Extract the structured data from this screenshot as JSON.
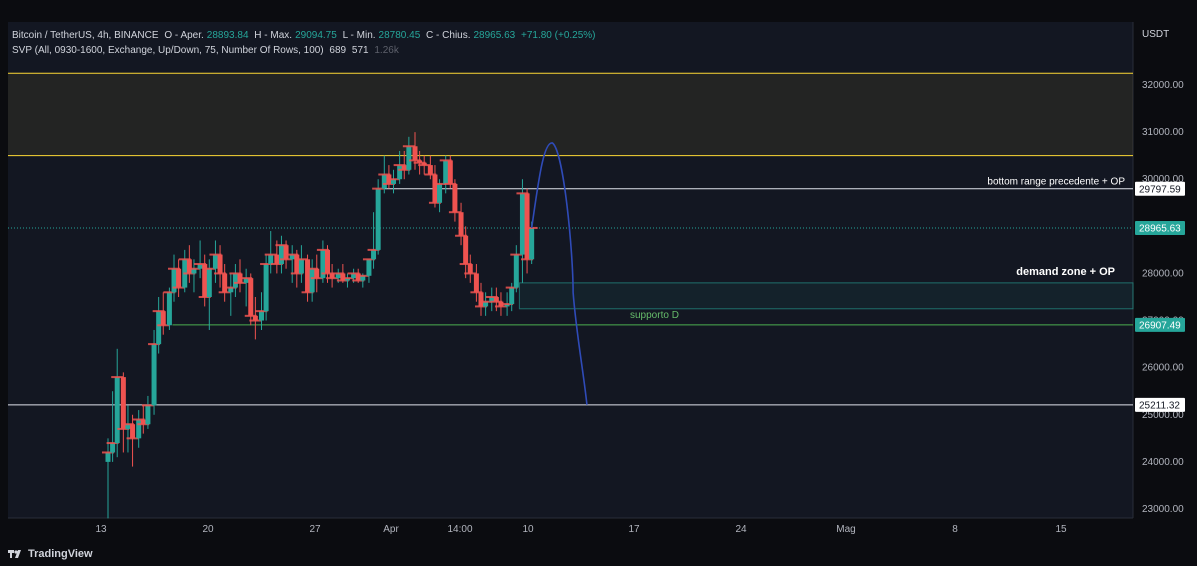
{
  "header": {
    "symbol": "Bitcoin / TetherUS, 4h, BINANCE",
    "o_label": "O - Aper.",
    "o_value": "28893.84",
    "h_label": "H - Max.",
    "h_value": "29094.75",
    "l_label": "L - Min.",
    "l_value": "28780.45",
    "c_label": "C - Chius.",
    "c_value": "28965.63",
    "change": "+71.80 (+0.25%)",
    "indicator": "SVP (All, 0930-1600, Exchange, Up/Down, 75, Number Of Rows, 100)",
    "ind_v1": "689",
    "ind_v2": "571",
    "ind_v3": "1.26k"
  },
  "brand": "TradingView",
  "colors": {
    "up": "#26a69a",
    "down": "#ef5350",
    "bg": "#0b0c10",
    "zone": "#fdd835",
    "path": "#2f4bb8"
  },
  "chart_data": {
    "type": "candlestick",
    "currency_label": "USDT",
    "y_ticks": [
      "32000.00",
      "31000.00",
      "30000.00",
      "29000.00",
      "28000.00",
      "27000.00",
      "26000.00",
      "25000.00",
      "24000.00",
      "23000.00"
    ],
    "x_ticks": [
      "13",
      "20",
      "27",
      "Apr",
      "14:00",
      "10",
      "17",
      "24",
      "Mag",
      "8",
      "15"
    ],
    "ylim": [
      22900,
      33000
    ],
    "price_labels": [
      {
        "value": 29797.59,
        "text": "29797.59",
        "style": "white"
      },
      {
        "value": 28965.63,
        "text": "28965.63",
        "style": "green"
      },
      {
        "value": 26907.49,
        "text": "26907.49",
        "style": "green"
      },
      {
        "value": 25211.32,
        "text": "25211.32",
        "style": "white"
      }
    ],
    "annotations": [
      {
        "text": "bottom range precedente + OP",
        "value": 29950
      },
      {
        "text": "demand zone + OP",
        "value": 28050
      },
      {
        "text": "supporto D",
        "value": 27120
      }
    ],
    "supply_zone": [
      30500,
      32250
    ],
    "demand_zone": [
      27250,
      27800
    ],
    "candles": [
      {
        "d": 0.0,
        "o": 24000,
        "h": 24500,
        "l": 22800,
        "c": 24200
      },
      {
        "d": 0.3,
        "o": 24200,
        "h": 25500,
        "l": 24000,
        "c": 24400
      },
      {
        "d": 0.6,
        "o": 24400,
        "h": 26400,
        "l": 24100,
        "c": 25800
      },
      {
        "d": 1.0,
        "o": 25800,
        "h": 25900,
        "l": 24200,
        "c": 24700
      },
      {
        "d": 1.3,
        "o": 24700,
        "h": 25200,
        "l": 24200,
        "c": 24800
      },
      {
        "d": 1.6,
        "o": 24800,
        "h": 25000,
        "l": 23900,
        "c": 24500
      },
      {
        "d": 2.0,
        "o": 24500,
        "h": 25100,
        "l": 24300,
        "c": 24900
      },
      {
        "d": 2.3,
        "o": 24900,
        "h": 25200,
        "l": 24600,
        "c": 24800
      },
      {
        "d": 2.6,
        "o": 24800,
        "h": 25400,
        "l": 24700,
        "c": 25200
      },
      {
        "d": 3.0,
        "o": 25200,
        "h": 26800,
        "l": 25000,
        "c": 26500
      },
      {
        "d": 3.3,
        "o": 26500,
        "h": 27500,
        "l": 26300,
        "c": 27200
      },
      {
        "d": 3.6,
        "o": 27200,
        "h": 27600,
        "l": 26700,
        "c": 26900
      },
      {
        "d": 4.0,
        "o": 26900,
        "h": 27700,
        "l": 26800,
        "c": 27600
      },
      {
        "d": 4.3,
        "o": 27600,
        "h": 28400,
        "l": 27400,
        "c": 28100
      },
      {
        "d": 4.6,
        "o": 28100,
        "h": 28300,
        "l": 27500,
        "c": 27700
      },
      {
        "d": 5.0,
        "o": 27700,
        "h": 28500,
        "l": 27600,
        "c": 28300
      },
      {
        "d": 5.3,
        "o": 28300,
        "h": 28600,
        "l": 27800,
        "c": 28000
      },
      {
        "d": 5.6,
        "o": 28000,
        "h": 28300,
        "l": 27600,
        "c": 28100
      },
      {
        "d": 6.0,
        "o": 28100,
        "h": 28700,
        "l": 27900,
        "c": 28200
      },
      {
        "d": 6.3,
        "o": 28200,
        "h": 28400,
        "l": 27300,
        "c": 27500
      },
      {
        "d": 6.6,
        "o": 27500,
        "h": 28300,
        "l": 26800,
        "c": 28100
      },
      {
        "d": 7.0,
        "o": 28100,
        "h": 28700,
        "l": 27800,
        "c": 28400
      },
      {
        "d": 7.3,
        "o": 28400,
        "h": 28600,
        "l": 27700,
        "c": 28000
      },
      {
        "d": 7.6,
        "o": 28000,
        "h": 28200,
        "l": 27400,
        "c": 27600
      },
      {
        "d": 8.0,
        "o": 27600,
        "h": 28000,
        "l": 27100,
        "c": 27700
      },
      {
        "d": 8.3,
        "o": 27700,
        "h": 28200,
        "l": 27500,
        "c": 28000
      },
      {
        "d": 8.6,
        "o": 28000,
        "h": 28300,
        "l": 27600,
        "c": 27800
      },
      {
        "d": 9.0,
        "o": 27800,
        "h": 28100,
        "l": 27300,
        "c": 27900
      },
      {
        "d": 9.3,
        "o": 27900,
        "h": 28000,
        "l": 26900,
        "c": 27100
      },
      {
        "d": 9.6,
        "o": 27100,
        "h": 27500,
        "l": 26600,
        "c": 27000
      },
      {
        "d": 10.0,
        "o": 27000,
        "h": 27600,
        "l": 26800,
        "c": 27200
      },
      {
        "d": 10.3,
        "o": 27200,
        "h": 28400,
        "l": 27000,
        "c": 28200
      },
      {
        "d": 10.6,
        "o": 28200,
        "h": 28900,
        "l": 28000,
        "c": 28400
      },
      {
        "d": 11.0,
        "o": 28400,
        "h": 28700,
        "l": 28000,
        "c": 28200
      },
      {
        "d": 11.3,
        "o": 28200,
        "h": 28800,
        "l": 28000,
        "c": 28600
      },
      {
        "d": 11.6,
        "o": 28600,
        "h": 28700,
        "l": 28100,
        "c": 28300
      },
      {
        "d": 12.0,
        "o": 28300,
        "h": 28600,
        "l": 27800,
        "c": 28400
      },
      {
        "d": 12.3,
        "o": 28400,
        "h": 28500,
        "l": 27700,
        "c": 28000
      },
      {
        "d": 12.6,
        "o": 28000,
        "h": 28600,
        "l": 27800,
        "c": 28300
      },
      {
        "d": 13.0,
        "o": 28300,
        "h": 28400,
        "l": 27400,
        "c": 27600
      },
      {
        "d": 13.3,
        "o": 27600,
        "h": 28300,
        "l": 27400,
        "c": 28100
      },
      {
        "d": 13.6,
        "o": 28100,
        "h": 28400,
        "l": 27600,
        "c": 27900
      },
      {
        "d": 14.0,
        "o": 27900,
        "h": 28700,
        "l": 27800,
        "c": 28500
      },
      {
        "d": 14.3,
        "o": 28500,
        "h": 28600,
        "l": 27800,
        "c": 28000
      },
      {
        "d": 14.6,
        "o": 28000,
        "h": 28200,
        "l": 27700,
        "c": 27900
      },
      {
        "d": 15.0,
        "o": 27900,
        "h": 28100,
        "l": 27800,
        "c": 28000
      },
      {
        "d": 15.3,
        "o": 28000,
        "h": 28200,
        "l": 27800,
        "c": 27850
      },
      {
        "d": 15.6,
        "o": 27850,
        "h": 28000,
        "l": 27700,
        "c": 27900
      },
      {
        "d": 16.0,
        "o": 27900,
        "h": 28100,
        "l": 27800,
        "c": 28000
      },
      {
        "d": 16.3,
        "o": 28000,
        "h": 28100,
        "l": 27800,
        "c": 27850
      },
      {
        "d": 16.6,
        "o": 27850,
        "h": 28000,
        "l": 27700,
        "c": 27950
      },
      {
        "d": 17.0,
        "o": 27950,
        "h": 28300,
        "l": 27800,
        "c": 28300
      },
      {
        "d": 17.3,
        "o": 28300,
        "h": 29300,
        "l": 28100,
        "c": 28500
      },
      {
        "d": 17.6,
        "o": 28500,
        "h": 30000,
        "l": 28400,
        "c": 29800
      },
      {
        "d": 18.0,
        "o": 29800,
        "h": 30500,
        "l": 29700,
        "c": 30100
      },
      {
        "d": 18.3,
        "o": 30100,
        "h": 30300,
        "l": 29800,
        "c": 29900
      },
      {
        "d": 18.6,
        "o": 29900,
        "h": 30200,
        "l": 29700,
        "c": 30000
      },
      {
        "d": 19.0,
        "o": 30000,
        "h": 30600,
        "l": 29900,
        "c": 30300
      },
      {
        "d": 19.3,
        "o": 30300,
        "h": 30600,
        "l": 30000,
        "c": 30200
      },
      {
        "d": 19.6,
        "o": 30200,
        "h": 30900,
        "l": 30100,
        "c": 30700
      },
      {
        "d": 20.0,
        "o": 30700,
        "h": 31000,
        "l": 30200,
        "c": 30400
      },
      {
        "d": 20.3,
        "o": 30400,
        "h": 30600,
        "l": 30100,
        "c": 30350
      },
      {
        "d": 20.6,
        "o": 30350,
        "h": 30500,
        "l": 30100,
        "c": 30300
      },
      {
        "d": 21.0,
        "o": 30300,
        "h": 30500,
        "l": 30000,
        "c": 30100
      },
      {
        "d": 21.3,
        "o": 30100,
        "h": 30300,
        "l": 29400,
        "c": 29500
      },
      {
        "d": 21.6,
        "o": 29500,
        "h": 30000,
        "l": 29300,
        "c": 29900
      },
      {
        "d": 22.0,
        "o": 29900,
        "h": 30500,
        "l": 29700,
        "c": 30400
      },
      {
        "d": 22.3,
        "o": 30400,
        "h": 30500,
        "l": 29800,
        "c": 29900
      },
      {
        "d": 22.6,
        "o": 29900,
        "h": 30000,
        "l": 29100,
        "c": 29300
      },
      {
        "d": 23.0,
        "o": 29300,
        "h": 29500,
        "l": 28600,
        "c": 28800
      },
      {
        "d": 23.3,
        "o": 28800,
        "h": 29000,
        "l": 27900,
        "c": 28200
      },
      {
        "d": 23.6,
        "o": 28200,
        "h": 28400,
        "l": 27800,
        "c": 28000
      },
      {
        "d": 24.0,
        "o": 28000,
        "h": 28200,
        "l": 27400,
        "c": 27600
      },
      {
        "d": 24.3,
        "o": 27600,
        "h": 27800,
        "l": 27100,
        "c": 27300
      },
      {
        "d": 24.6,
        "o": 27300,
        "h": 27600,
        "l": 27100,
        "c": 27400
      },
      {
        "d": 25.0,
        "o": 27400,
        "h": 27700,
        "l": 27200,
        "c": 27500
      },
      {
        "d": 25.3,
        "o": 27500,
        "h": 27700,
        "l": 27200,
        "c": 27400
      },
      {
        "d": 25.6,
        "o": 27400,
        "h": 27600,
        "l": 27100,
        "c": 27300
      },
      {
        "d": 26.0,
        "o": 27300,
        "h": 27600,
        "l": 27100,
        "c": 27350
      },
      {
        "d": 26.3,
        "o": 27350,
        "h": 27800,
        "l": 27200,
        "c": 27700
      },
      {
        "d": 26.6,
        "o": 27700,
        "h": 28600,
        "l": 27600,
        "c": 28400
      },
      {
        "d": 27.0,
        "o": 28400,
        "h": 30000,
        "l": 27800,
        "c": 29700
      },
      {
        "d": 27.3,
        "o": 29700,
        "h": 29800,
        "l": 28000,
        "c": 28300
      },
      {
        "d": 27.6,
        "o": 28300,
        "h": 29100,
        "l": 28200,
        "c": 28966
      }
    ],
    "projection": [
      {
        "d": 27.6,
        "v": 28966
      },
      {
        "d": 28.6,
        "v": 30600
      },
      {
        "d": 29.3,
        "v": 30600
      },
      {
        "d": 30.3,
        "v": 27600
      },
      {
        "d": 31.2,
        "v": 25211
      }
    ]
  }
}
